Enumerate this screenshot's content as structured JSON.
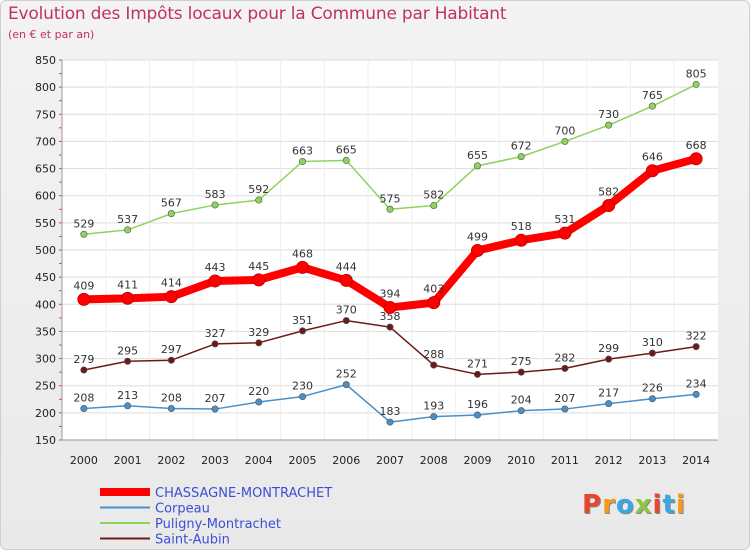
{
  "header": {
    "title": "Evolution des Impôts locaux pour la Commune par Habitant",
    "subtitle": "(en € et par an)"
  },
  "logo": {
    "text": "Proxiti",
    "colors": [
      "#e8462a",
      "#f29a1f",
      "#3aa7e0",
      "#8cc63f",
      "#e8462a",
      "#3aa7e0",
      "#f29a1f"
    ]
  },
  "chart_data": {
    "type": "line",
    "x": [
      2000,
      2001,
      2002,
      2003,
      2004,
      2005,
      2006,
      2007,
      2008,
      2009,
      2010,
      2011,
      2012,
      2013,
      2014
    ],
    "ylim": [
      150,
      850
    ],
    "yticks": [
      150,
      200,
      250,
      300,
      350,
      400,
      450,
      500,
      550,
      600,
      650,
      700,
      750,
      800,
      850
    ],
    "grid": true,
    "legend_position": "bottom-left",
    "series": [
      {
        "name": "CHASSAGNE-MONTRACHET",
        "color": "#ff0000",
        "bold": true,
        "values": [
          409,
          411,
          414,
          443,
          445,
          468,
          444,
          394,
          403,
          499,
          518,
          531,
          582,
          646,
          668
        ]
      },
      {
        "name": "Corpeau",
        "color": "#4a90c8",
        "values": [
          208,
          213,
          208,
          207,
          220,
          230,
          252,
          183,
          193,
          196,
          204,
          207,
          217,
          226,
          234
        ]
      },
      {
        "name": "Puligny-Montrachet",
        "color": "#8ed35a",
        "values": [
          529,
          537,
          567,
          583,
          592,
          663,
          665,
          575,
          582,
          655,
          672,
          700,
          730,
          765,
          805
        ]
      },
      {
        "name": "Saint-Aubin",
        "color": "#6b1a1a",
        "values": [
          279,
          295,
          297,
          327,
          329,
          351,
          370,
          358,
          288,
          271,
          275,
          282,
          299,
          310,
          322
        ]
      }
    ]
  }
}
